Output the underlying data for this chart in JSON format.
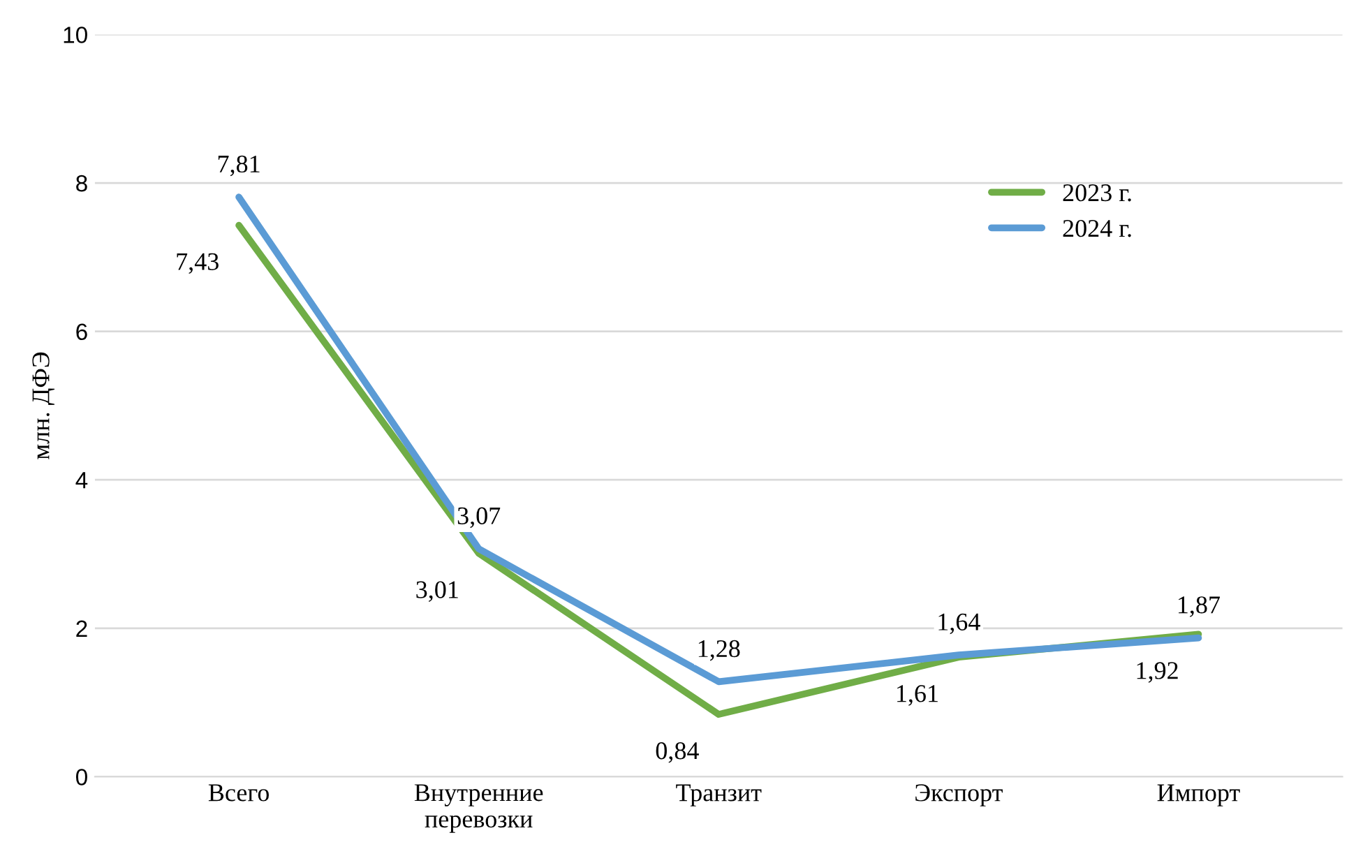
{
  "chart_data": {
    "type": "line",
    "ylabel": "млн. ДФЭ",
    "categories": [
      "Всего",
      "Внутренние\nперевозки",
      "Транзит",
      "Экспорт",
      "Импорт"
    ],
    "series": [
      {
        "name": "2023 г.",
        "color": "#70ad47",
        "values": [
          7.43,
          3.01,
          0.84,
          1.61,
          1.92
        ],
        "value_labels": [
          "7,43",
          "3,01",
          "0,84",
          "1,61",
          "1,92"
        ]
      },
      {
        "name": "2024 г.",
        "color": "#5b9bd5",
        "values": [
          7.81,
          3.07,
          1.28,
          1.64,
          1.87
        ],
        "value_labels": [
          "7,81",
          "3,07",
          "1,28",
          "1,64",
          "1,87"
        ]
      }
    ],
    "ylim": [
      0,
      10
    ],
    "yticks": [
      0,
      2,
      4,
      6,
      8,
      10
    ],
    "grid": "y",
    "legend": "top right",
    "marker": "none",
    "line_style": "solid"
  }
}
